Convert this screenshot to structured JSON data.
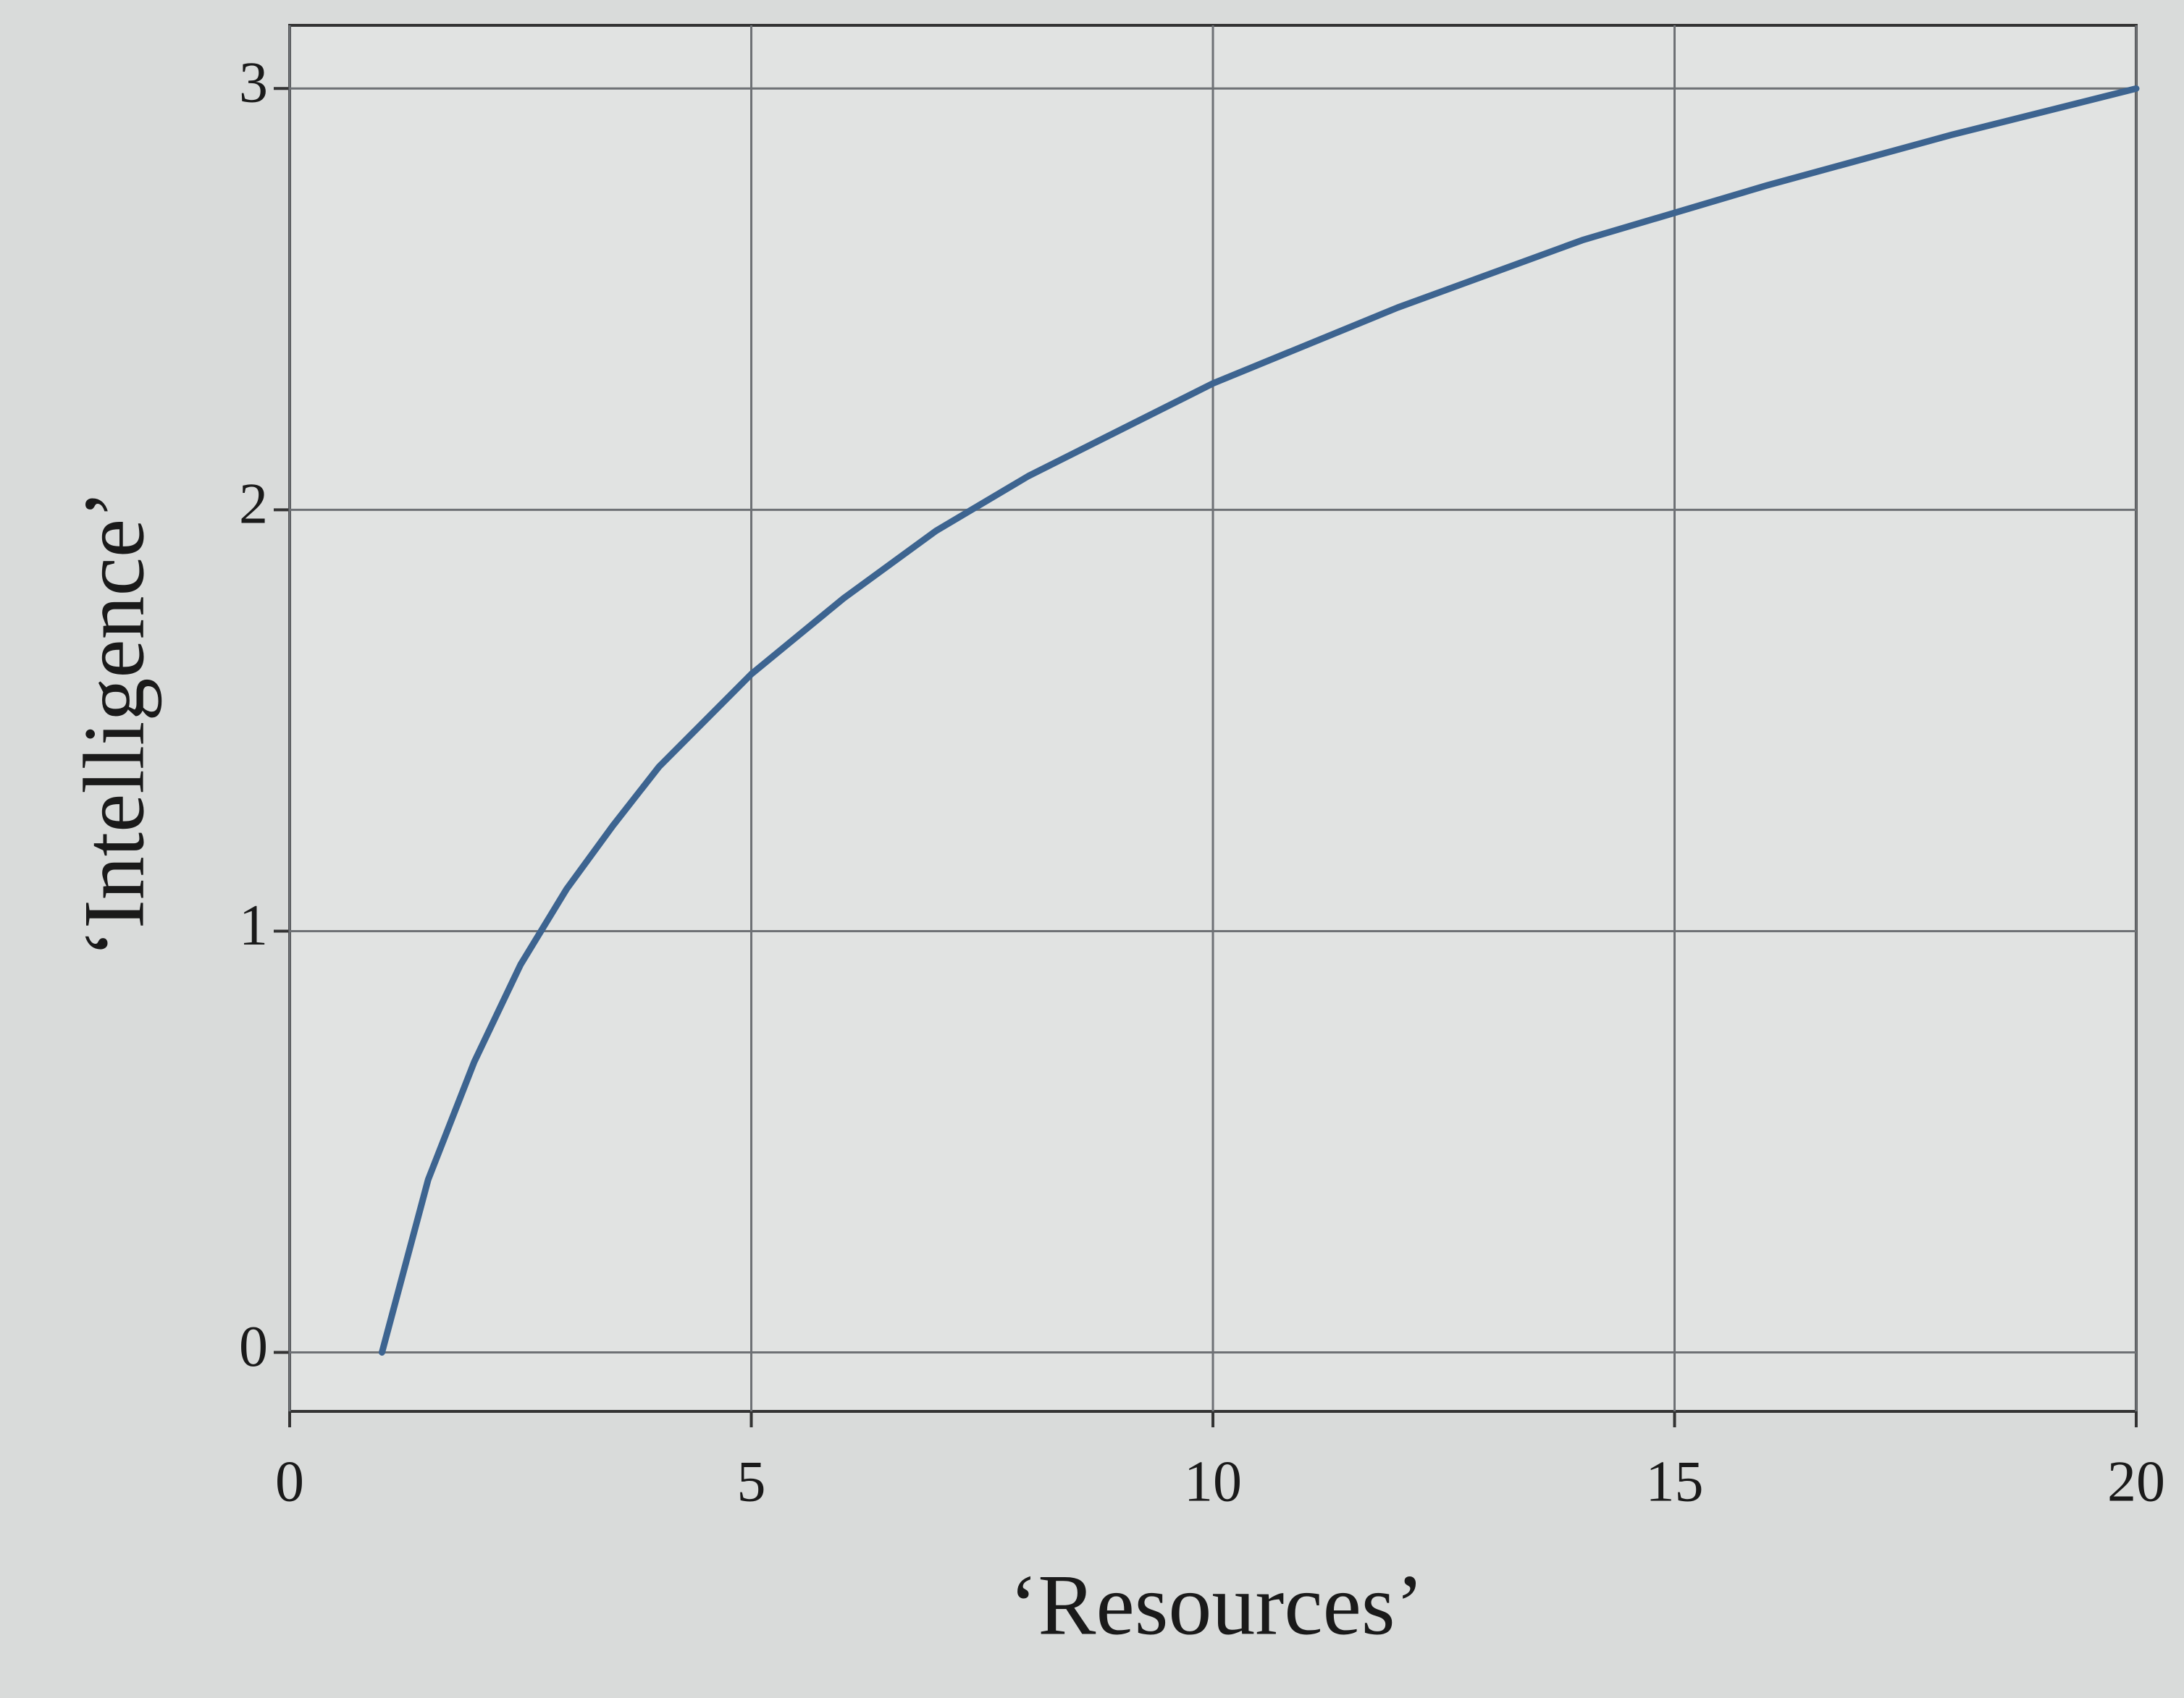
{
  "chart_data": {
    "type": "line",
    "x_label": "‘Resources’",
    "y_label": "‘Intelligence’",
    "x": [
      1,
      1.5,
      2,
      2.5,
      3,
      3.5,
      4,
      5,
      6,
      7,
      8,
      10,
      12,
      14,
      16,
      18,
      20
    ],
    "series": [
      {
        "color": "#3d6490",
        "values": [
          0,
          0.41,
          0.69,
          0.92,
          1.1,
          1.25,
          1.39,
          1.61,
          1.79,
          1.95,
          2.08,
          2.3,
          2.48,
          2.64,
          2.77,
          2.89,
          3.0
        ]
      }
    ],
    "xlim": [
      0,
      20
    ],
    "ylim": [
      -0.14,
      3.15
    ],
    "xticks": [
      0,
      5,
      10,
      15,
      20
    ],
    "yticks": [
      0,
      1,
      2,
      3
    ],
    "grid": true
  }
}
